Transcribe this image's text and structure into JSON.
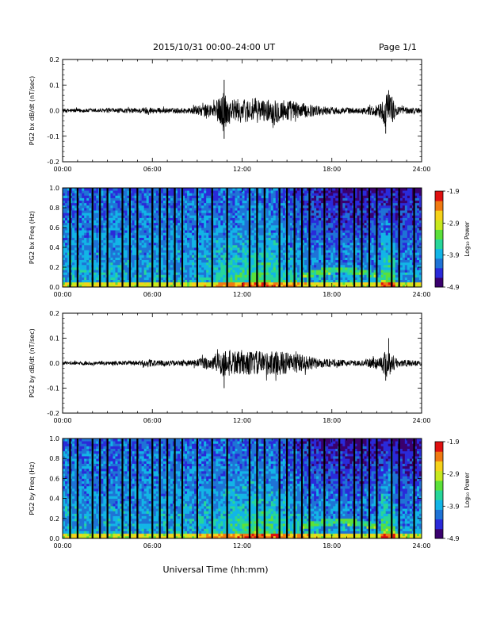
{
  "header": {
    "date_range": "2015/10/31   00:00–24:00 UT",
    "page": "Page 1/1"
  },
  "x_axis": {
    "label": "Universal Time (hh:mm)",
    "ticks": [
      "00:00",
      "06:00",
      "12:00",
      "18:00",
      "24:00"
    ]
  },
  "colors": {
    "spectrogram_background": "#1f73d6",
    "colormap": [
      "#3a006e",
      "#2a2ad9",
      "#1f73d6",
      "#13b5e6",
      "#27d69a",
      "#5be03a",
      "#c8e81e",
      "#f5d21a",
      "#f07a12",
      "#e01010"
    ]
  },
  "chart_data": [
    {
      "type": "line",
      "panel": "bx-waveform",
      "ylabel": "PG2 bx dB/dt (nT/sec)",
      "ylim": [
        -0.2,
        0.2
      ],
      "yticks": [
        "-0.2",
        "-0.1",
        "0.0",
        "0.1",
        "0.2"
      ],
      "xlim_hours": [
        0,
        24
      ],
      "envelope": {
        "x_hours": [
          0,
          2,
          5,
          5.8,
          6,
          7,
          8.5,
          10,
          10.5,
          10.8,
          11,
          11.5,
          12,
          13,
          13.5,
          14,
          15,
          16,
          17,
          18,
          20,
          21.3,
          21.7,
          22,
          22.5,
          24
        ],
        "amplitude": [
          0.008,
          0.008,
          0.01,
          0.016,
          0.012,
          0.01,
          0.012,
          0.03,
          0.05,
          0.09,
          0.055,
          0.045,
          0.045,
          0.05,
          0.04,
          0.05,
          0.045,
          0.03,
          0.02,
          0.015,
          0.01,
          0.03,
          0.08,
          0.05,
          0.015,
          0.01
        ]
      },
      "peaks": [
        {
          "x_hours": 10.8,
          "y": 0.12
        },
        {
          "x_hours": 10.8,
          "y": -0.11
        },
        {
          "x_hours": 21.8,
          "y": 0.08
        },
        {
          "x_hours": 21.6,
          "y": -0.09
        }
      ]
    },
    {
      "type": "heatmap",
      "panel": "bx-spectrogram",
      "ylabel": "PG2 bx Freq (Hz)",
      "ylim": [
        0,
        1.0
      ],
      "yticks": [
        "0.0",
        "0.2",
        "0.4",
        "0.6",
        "0.8",
        "1.0"
      ],
      "xlim_hours": [
        0,
        24
      ],
      "colorbar": {
        "label": "Log₁₀ Power",
        "ticks": [
          "-1.9",
          "-2.9",
          "-3.9",
          "-4.9"
        ],
        "range": [
          -4.9,
          -1.9
        ]
      },
      "gap_lines_hours": [
        0.5,
        1.0,
        2.0,
        2.5,
        3.0,
        4.0,
        4.5,
        5.0,
        6.0,
        6.5,
        7.0,
        7.5,
        8.0,
        9.0,
        10.0,
        11.0,
        12.5,
        13.0,
        13.5,
        14.5,
        15.0,
        15.5,
        16.0,
        16.5,
        17.5,
        18.5,
        19.5,
        20.0,
        20.5,
        21.0,
        22.0,
        22.5,
        23.5
      ]
    },
    {
      "type": "line",
      "panel": "by-waveform",
      "ylabel": "PG2 by dB/dt (nT/sec)",
      "ylim": [
        -0.2,
        0.2
      ],
      "yticks": [
        "-0.2",
        "-0.1",
        "0.0",
        "0.1",
        "0.2"
      ],
      "xlim_hours": [
        0,
        24
      ],
      "envelope": {
        "x_hours": [
          0,
          2,
          5,
          5.8,
          6,
          7,
          8.5,
          10,
          10.5,
          10.8,
          11,
          11.5,
          12,
          13,
          13.5,
          14,
          15,
          16,
          17,
          18,
          20,
          21.3,
          21.7,
          22,
          22.5,
          24
        ],
        "amplitude": [
          0.007,
          0.007,
          0.009,
          0.018,
          0.012,
          0.01,
          0.012,
          0.03,
          0.05,
          0.06,
          0.055,
          0.05,
          0.045,
          0.05,
          0.045,
          0.05,
          0.045,
          0.035,
          0.02,
          0.015,
          0.01,
          0.03,
          0.06,
          0.04,
          0.015,
          0.01
        ]
      },
      "peaks": [
        {
          "x_hours": 10.8,
          "y": -0.1
        },
        {
          "x_hours": 21.8,
          "y": 0.1
        },
        {
          "x_hours": 21.6,
          "y": -0.07
        }
      ]
    },
    {
      "type": "heatmap",
      "panel": "by-spectrogram",
      "ylabel": "PG2 by Freq (Hz)",
      "ylim": [
        0,
        1.0
      ],
      "yticks": [
        "0.0",
        "0.2",
        "0.4",
        "0.6",
        "0.8",
        "1.0"
      ],
      "xlim_hours": [
        0,
        24
      ],
      "colorbar": {
        "label": "Log₁₀ Power",
        "ticks": [
          "-1.9",
          "-2.9",
          "-3.9",
          "-4.9"
        ],
        "range": [
          -4.9,
          -1.9
        ]
      },
      "gap_lines_hours": [
        0.5,
        1.0,
        2.0,
        2.5,
        3.0,
        4.0,
        4.5,
        5.0,
        6.0,
        6.5,
        7.0,
        7.5,
        8.0,
        9.0,
        10.0,
        11.0,
        12.5,
        13.0,
        13.5,
        14.5,
        15.0,
        15.5,
        16.0,
        16.5,
        17.5,
        18.5,
        19.5,
        20.0,
        20.5,
        21.0,
        22.0,
        22.5,
        23.5
      ]
    }
  ]
}
